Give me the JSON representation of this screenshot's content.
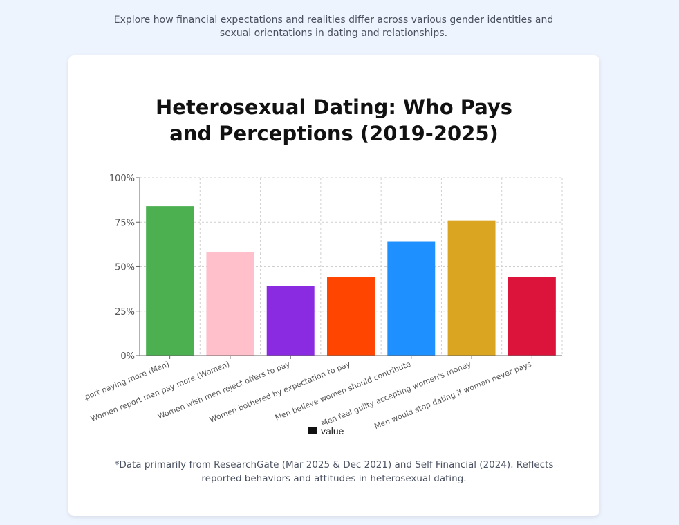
{
  "intro": "Explore how financial expectations and realities differ across various gender identities and sexual orientations in dating and relationships.",
  "footnote": "*Data primarily from ResearchGate (Mar 2025 & Dec 2021) and Self Financial (2024). Reflects reported behaviors and attitudes in heterosexual dating.",
  "chart_data": {
    "type": "bar",
    "title": "Heterosexual Dating: Who Pays and Perceptions (2019-2025)",
    "xlabel": "",
    "ylabel": "",
    "ylim": [
      0,
      100
    ],
    "yticks": [
      "0%",
      "25%",
      "50%",
      "75%",
      "100%"
    ],
    "grid": true,
    "legend_position": "bottom",
    "categories": [
      "Men report paying more (Men)",
      "Women report men pay more (Women)",
      "Women wish men reject offers to pay",
      "Women bothered by expectation to pay",
      "Men believe women should contribute",
      "Men feel guilty accepting women's money",
      "Men would stop dating if woman never pays"
    ],
    "series": [
      {
        "name": "value",
        "values": [
          84,
          58,
          39,
          44,
          64,
          76,
          44
        ],
        "colors": [
          "#4caf50",
          "#ffc0cb",
          "#8a2be2",
          "#ff4500",
          "#1e90ff",
          "#daa520",
          "#dc143c"
        ]
      }
    ]
  }
}
